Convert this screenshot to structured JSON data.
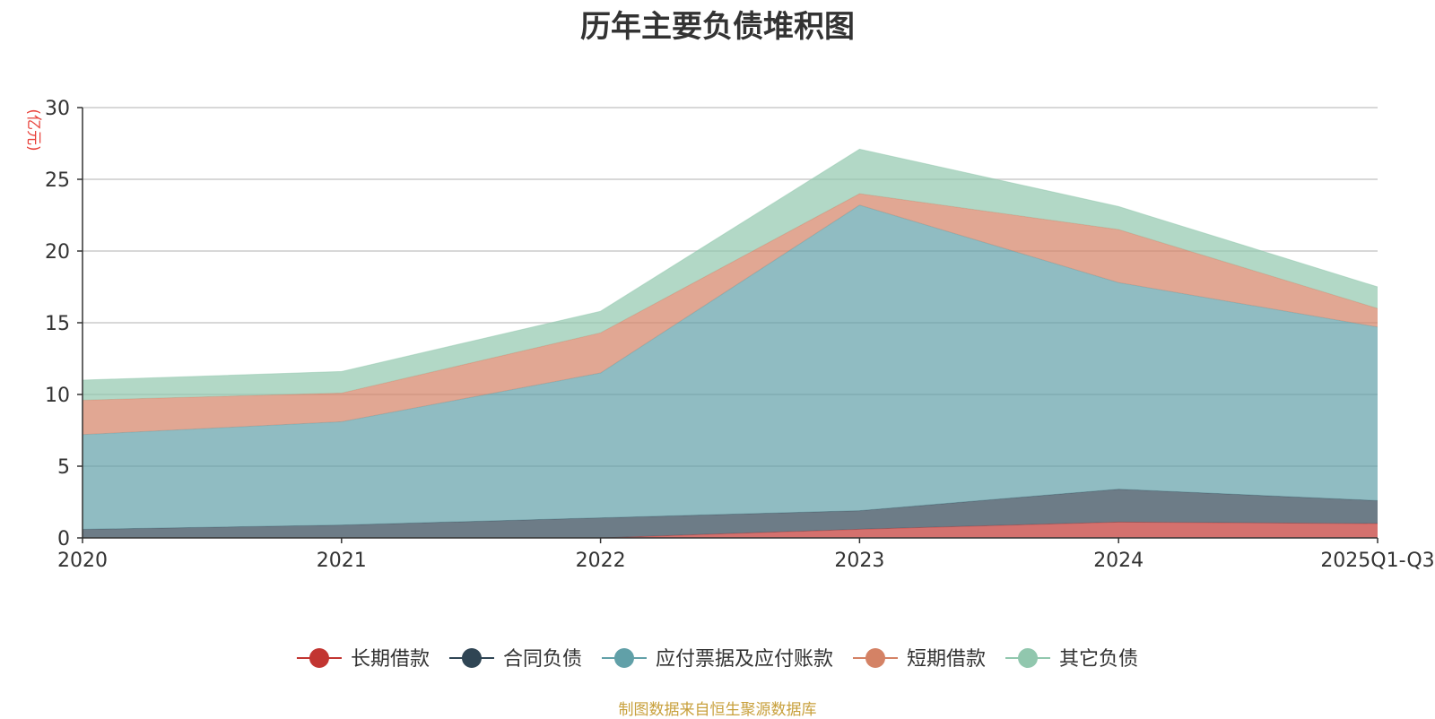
{
  "chart_data": {
    "type": "area",
    "stacked": true,
    "title": "历年主要负债堆积图",
    "ylabel": "(亿元)",
    "xlabel": "",
    "categories": [
      "2020",
      "2021",
      "2022",
      "2023",
      "2024",
      "2025Q1-Q3"
    ],
    "ylim": [
      0,
      30
    ],
    "yticks": [
      0,
      5,
      10,
      15,
      20,
      25,
      30
    ],
    "grid": true,
    "legend_position": "bottom",
    "series": [
      {
        "name": "长期借款",
        "color": "#c23531",
        "values": [
          0.0,
          0.0,
          0.0,
          0.6,
          1.1,
          1.0
        ]
      },
      {
        "name": "合同负债",
        "color": "#2f4554",
        "values": [
          0.6,
          0.9,
          1.4,
          1.3,
          2.3,
          1.6
        ]
      },
      {
        "name": "应付票据及应付账款",
        "color": "#61a0a8",
        "values": [
          6.6,
          7.2,
          10.1,
          21.3,
          14.4,
          12.1
        ]
      },
      {
        "name": "短期借款",
        "color": "#d48265",
        "values": [
          2.4,
          2.0,
          2.8,
          0.8,
          3.7,
          1.3
        ]
      },
      {
        "name": "其它负债",
        "color": "#91c7ae",
        "values": [
          1.4,
          1.5,
          1.5,
          3.1,
          1.6,
          1.5
        ]
      }
    ]
  },
  "footer": {
    "source": "制图数据来自恒生聚源数据库"
  }
}
